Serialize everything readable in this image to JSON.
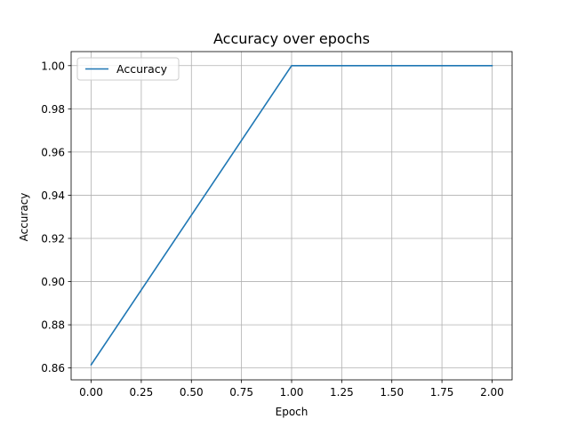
{
  "chart_data": {
    "type": "line",
    "title": "Accuracy over epochs",
    "xlabel": "Epoch",
    "ylabel": "Accuracy",
    "xlim": [
      -0.1,
      2.1
    ],
    "ylim": [
      0.8545,
      1.0065
    ],
    "xticks": [
      "0.00",
      "0.25",
      "0.50",
      "0.75",
      "1.00",
      "1.25",
      "1.50",
      "1.75",
      "2.00"
    ],
    "yticks": [
      "0.86",
      "0.88",
      "0.90",
      "0.92",
      "0.94",
      "0.96",
      "0.98",
      "1.00"
    ],
    "grid": true,
    "legend_position": "upper-left",
    "series": [
      {
        "name": "Accuracy",
        "color": "#1f77b4",
        "x": [
          0,
          1,
          2
        ],
        "y": [
          0.8615,
          1.0,
          1.0
        ]
      }
    ]
  }
}
